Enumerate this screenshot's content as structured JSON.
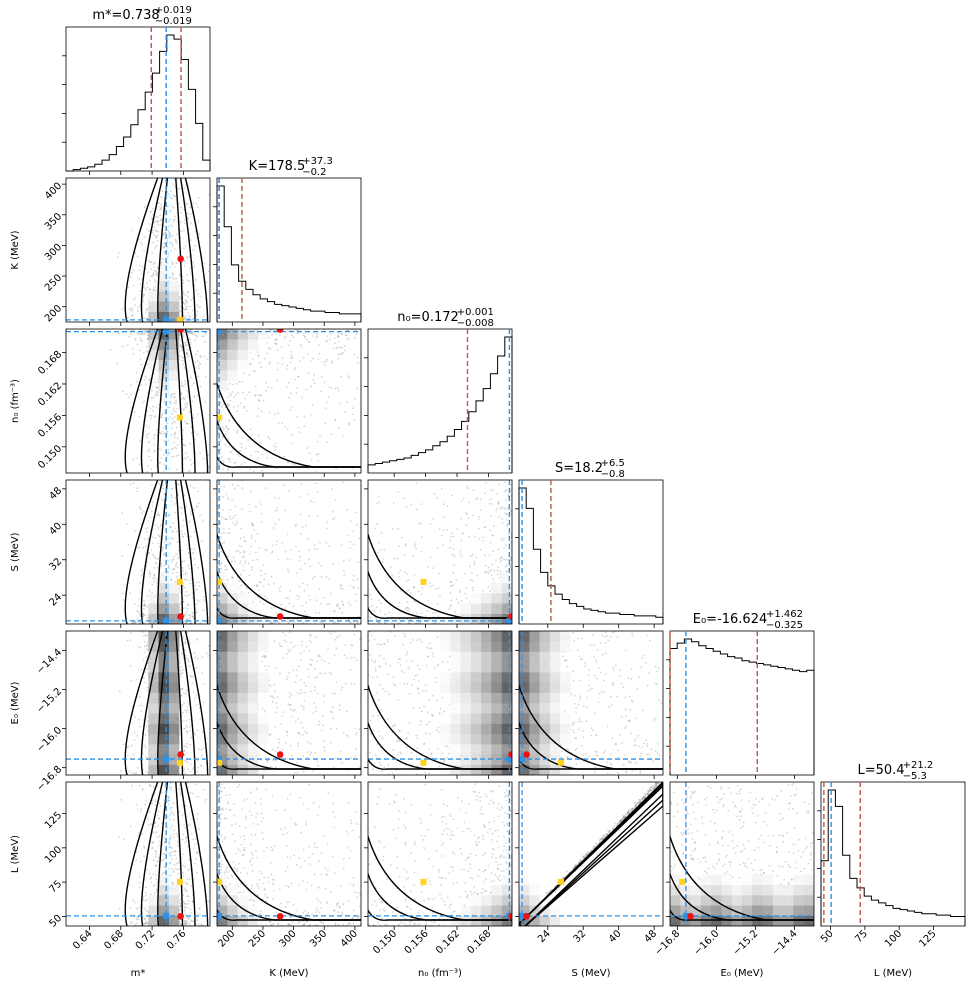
{
  "chart_data": {
    "type": "corner",
    "parameters": [
      {
        "key": "m",
        "label": "m*",
        "title": "m*=0.738",
        "title_sup": "+0.019",
        "title_sub": "−0.019",
        "range": [
          0.61,
          0.794
        ],
        "ticks": [
          0.64,
          0.68,
          0.72,
          0.76
        ],
        "tick_labels": [
          "0.64",
          "0.68",
          "0.72",
          "0.76"
        ],
        "median": 0.738,
        "lower": 0.719,
        "upper": 0.757
      },
      {
        "key": "K",
        "label": "K (MeV)",
        "title": "K=178.5",
        "title_sup": "+37.3",
        "title_sub": "−0.2",
        "range": [
          175,
          410
        ],
        "ticks": [
          200,
          250,
          300,
          350,
          400
        ],
        "tick_labels": [
          "200",
          "250",
          "300",
          "350",
          "400"
        ],
        "median": 178.5,
        "lower": 178.3,
        "upper": 215.8
      },
      {
        "key": "n0",
        "label": "n₀ (fm⁻³)",
        "title": "n₀=0.172",
        "title_sup": "+0.001",
        "title_sub": "−0.008",
        "range": [
          0.145,
          0.1725
        ],
        "ticks": [
          0.15,
          0.156,
          0.162,
          0.168
        ],
        "tick_labels": [
          "0.150",
          "0.156",
          "0.162",
          "0.168"
        ],
        "median": 0.172,
        "lower": 0.164,
        "upper": 0.173
      },
      {
        "key": "S",
        "label": "S (MeV)",
        "title": "S=18.2",
        "title_sup": "+6.5",
        "title_sub": "−0.8",
        "range": [
          17.5,
          50
        ],
        "ticks": [
          24,
          32,
          40,
          48
        ],
        "tick_labels": [
          "24",
          "32",
          "40",
          "48"
        ],
        "median": 18.2,
        "lower": 17.4,
        "upper": 24.7
      },
      {
        "key": "E0",
        "label": "E₀ (MeV)",
        "title": "E₀=-16.624",
        "title_sup": "+1.462",
        "title_sub": "−0.325",
        "range": [
          -16.95,
          -14.0
        ],
        "ticks": [
          -16.8,
          -16.0,
          -15.2,
          -14.4
        ],
        "tick_labels": [
          "−16.8",
          "−16.0",
          "−15.2",
          "−14.4"
        ],
        "median": -16.624,
        "lower": -16.949,
        "upper": -15.162
      },
      {
        "key": "L",
        "label": "L (MeV)",
        "title": "L=50.4",
        "title_sup": "+21.2",
        "title_sub": "−5.3",
        "range": [
          43,
          148
        ],
        "ticks": [
          50,
          75,
          100,
          125
        ],
        "tick_labels": [
          "50",
          "75",
          "100",
          "125"
        ],
        "median": 50.4,
        "lower": 45.1,
        "upper": 71.6
      }
    ],
    "marginals": [
      [
        0.0,
        0.01,
        0.02,
        0.03,
        0.05,
        0.08,
        0.12,
        0.18,
        0.25,
        0.34,
        0.45,
        0.58,
        0.72,
        0.88,
        1.0,
        0.97,
        0.82,
        0.6,
        0.35,
        0.08
      ],
      [
        1.0,
        0.7,
        0.42,
        0.3,
        0.24,
        0.2,
        0.17,
        0.15,
        0.13,
        0.12,
        0.11,
        0.1,
        0.09,
        0.08,
        0.08,
        0.07,
        0.07,
        0.06,
        0.06,
        0.06
      ],
      [
        0.06,
        0.07,
        0.08,
        0.09,
        0.1,
        0.11,
        0.13,
        0.15,
        0.17,
        0.2,
        0.23,
        0.27,
        0.32,
        0.38,
        0.45,
        0.53,
        0.62,
        0.73,
        0.86,
        1.0
      ],
      [
        1.0,
        0.85,
        0.55,
        0.38,
        0.28,
        0.22,
        0.18,
        0.15,
        0.13,
        0.11,
        0.1,
        0.09,
        0.08,
        0.08,
        0.07,
        0.07,
        0.06,
        0.06,
        0.06,
        0.05
      ],
      [
        0.93,
        0.97,
        1.0,
        0.98,
        0.95,
        0.93,
        0.91,
        0.89,
        0.87,
        0.86,
        0.84,
        0.83,
        0.82,
        0.81,
        0.8,
        0.79,
        0.78,
        0.77,
        0.76,
        0.77
      ],
      [
        0.48,
        1.0,
        0.88,
        0.52,
        0.35,
        0.28,
        0.22,
        0.19,
        0.17,
        0.15,
        0.13,
        0.12,
        0.11,
        0.1,
        0.09,
        0.09,
        0.08,
        0.08,
        0.07,
        0.07
      ]
    ],
    "best_fit": {
      "m": 0.737,
      "K": 178.5,
      "n0": 0.1722,
      "S": 18.2,
      "E0": -16.624,
      "L": 50.4
    },
    "marker_red": {
      "m": 0.7565,
      "K": 278,
      "n0": 0.1724,
      "S": 19.2,
      "E0": -16.53,
      "L": 50.1
    },
    "marker_yellow": {
      "m": 0.7555,
      "K": 178.5,
      "n0": 0.1556,
      "S": 27.0,
      "E0": -16.7,
      "L": 75.2
    },
    "colors": {
      "median": "#2e91e5",
      "quantile": "#b8584a",
      "red_marker": "#ee1111",
      "yellow_marker": "#ffd21f",
      "blue_marker": "#2e91e5",
      "contour": "#000000",
      "histogram": "#000000"
    },
    "grid": false
  }
}
